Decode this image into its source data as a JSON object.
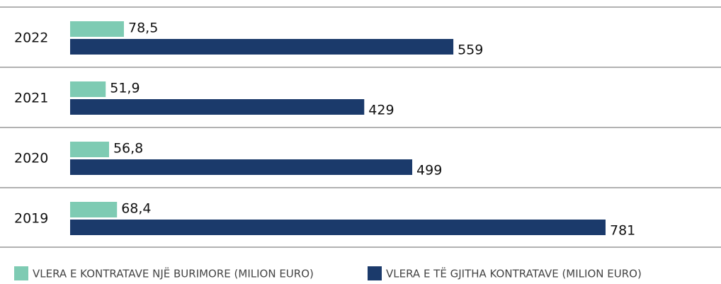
{
  "chart_data": {
    "type": "bar",
    "orientation": "horizontal",
    "categories": [
      "2022",
      "2021",
      "2020",
      "2019"
    ],
    "series": [
      {
        "name": "VLERA E KONTRATAVE NJË BURIMORE (MILION EURO)",
        "color": "#7ecbb3",
        "values": [
          78.5,
          51.9,
          56.8,
          68.4
        ],
        "value_labels": [
          "78,5",
          "51,9",
          "56,8",
          "68,4"
        ]
      },
      {
        "name": "VLERA E TË GJITHA KONTRATAVE (MILION EURO)",
        "color": "#1b3a6b",
        "values": [
          559,
          429,
          499,
          781
        ]
      }
    ]
  }
}
